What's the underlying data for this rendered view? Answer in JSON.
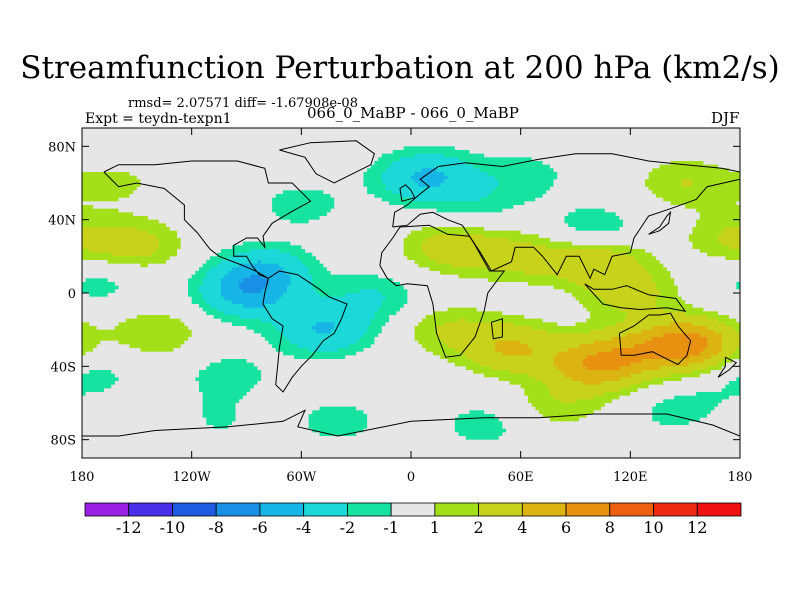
{
  "chart_data": {
    "type": "heatmap",
    "title": "Streamfunction Perturbation at 200 hPa (km2/s)",
    "stats_text": "rmsd= 2.07571 diff= -1.67908e-08",
    "experiment": "Expt = teydn-texpn1",
    "subtitle": "066_0_MaBP - 066_0_MaBP",
    "season": "DJF",
    "x_range": [
      -180,
      180
    ],
    "y_range": [
      -90,
      90
    ],
    "x_ticks": [
      {
        "value": -180,
        "label": "180"
      },
      {
        "value": -120,
        "label": "120W"
      },
      {
        "value": -60,
        "label": "60W"
      },
      {
        "value": 0,
        "label": "0"
      },
      {
        "value": 60,
        "label": "60E"
      },
      {
        "value": 120,
        "label": "120E"
      },
      {
        "value": 180,
        "label": "180"
      }
    ],
    "y_ticks": [
      {
        "value": 80,
        "label": "80N"
      },
      {
        "value": 40,
        "label": "40N"
      },
      {
        "value": 0,
        "label": "0"
      },
      {
        "value": -40,
        "label": "40S"
      },
      {
        "value": -80,
        "label": "80S"
      }
    ],
    "colorbar": {
      "labels": [
        "-12",
        "-10",
        "-8",
        "-6",
        "-4",
        "-2",
        "-1",
        "1",
        "2",
        "4",
        "6",
        "8",
        "10",
        "12"
      ],
      "colors": [
        "#9b20e6",
        "#4b2ee8",
        "#1f5be0",
        "#1a8fe6",
        "#17b4e6",
        "#1cd8d8",
        "#16e3a0",
        "#e6e6e6",
        "#a4e01a",
        "#c9d21a",
        "#dcb412",
        "#e89010",
        "#ec6010",
        "#ee2a10",
        "#f01010"
      ]
    },
    "anomalies": [
      {
        "lon": -60,
        "lat": 48,
        "value": -1.5
      },
      {
        "lon": 0,
        "lat": 62,
        "value": -1.5
      },
      {
        "lon": 12,
        "lat": 64,
        "value": -3
      },
      {
        "lon": 36,
        "lat": 48,
        "value": -1.3
      },
      {
        "lon": 62,
        "lat": 64,
        "value": -1.5
      },
      {
        "lon": 100,
        "lat": 34,
        "value": -2.2
      },
      {
        "lon": 150,
        "lat": 60,
        "value": 2
      },
      {
        "lon": 120,
        "lat": 0,
        "value": 2.5
      },
      {
        "lon": 102,
        "lat": 18,
        "value": 3.5
      },
      {
        "lon": 60,
        "lat": 20,
        "value": 2.5
      },
      {
        "lon": 22,
        "lat": 25,
        "value": 3
      },
      {
        "lon": -90,
        "lat": 0,
        "value": -4.5
      },
      {
        "lon": -80,
        "lat": 12,
        "value": -3.5
      },
      {
        "lon": -48,
        "lat": -20,
        "value": -4
      },
      {
        "lon": -20,
        "lat": -2,
        "value": -2
      },
      {
        "lon": -150,
        "lat": 26,
        "value": 2.5
      },
      {
        "lon": -140,
        "lat": -22,
        "value": 2
      },
      {
        "lon": -160,
        "lat": 60,
        "value": 1.2
      },
      {
        "lon": 152,
        "lat": -28,
        "value": 7
      },
      {
        "lon": 120,
        "lat": -32,
        "value": 3
      },
      {
        "lon": 100,
        "lat": -40,
        "value": 5
      },
      {
        "lon": 55,
        "lat": -30,
        "value": 4
      },
      {
        "lon": 150,
        "lat": -66,
        "value": -2
      },
      {
        "lon": 40,
        "lat": -72,
        "value": -1.5
      },
      {
        "lon": -40,
        "lat": -70,
        "value": -1.5
      },
      {
        "lon": -110,
        "lat": -70,
        "value": -1.3
      },
      {
        "lon": 20,
        "lat": -20,
        "value": 2
      },
      {
        "lon": -100,
        "lat": -45,
        "value": -1.5
      },
      {
        "lon": -175,
        "lat": -45,
        "value": -1.5
      },
      {
        "lon": -170,
        "lat": 5,
        "value": -1.4
      },
      {
        "lon": 175,
        "lat": 30,
        "value": 2
      },
      {
        "lon": -140,
        "lat": -75,
        "value": 1.2
      },
      {
        "lon": 165,
        "lat": -78,
        "value": 1.3
      },
      {
        "lon": 80,
        "lat": -62,
        "value": 1.6
      }
    ]
  }
}
